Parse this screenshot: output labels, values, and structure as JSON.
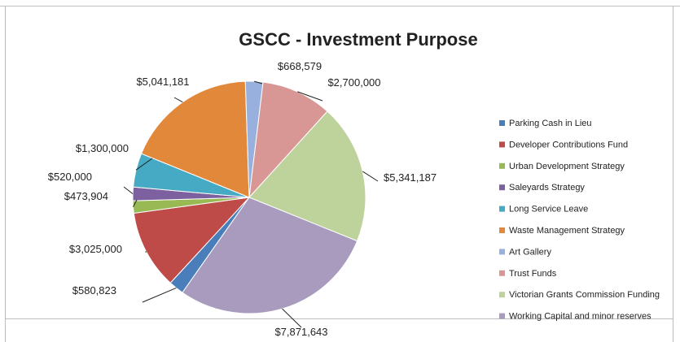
{
  "chart_data": {
    "type": "pie",
    "title": "GSCC - Investment Purpose",
    "legend_position": "right",
    "slices": [
      {
        "name": "Parking Cash in Lieu",
        "value": 580823,
        "label": "$580,823",
        "color": "#4a7ebb"
      },
      {
        "name": "Developer Contributions Fund",
        "value": 3025000,
        "label": "$3,025,000",
        "color": "#be4b48"
      },
      {
        "name": "Urban Development Strategy",
        "value": 473904,
        "label": "$473,904",
        "color": "#98b954"
      },
      {
        "name": "Saleyards Strategy",
        "value": 520000,
        "label": "$520,000",
        "color": "#7d60a0"
      },
      {
        "name": "Long Service Leave",
        "value": 1300000,
        "label": "$1,300,000",
        "color": "#46aac4"
      },
      {
        "name": "Waste Management Strategy",
        "value": 5041181,
        "label": "$5,041,181",
        "color": "#e2883a"
      },
      {
        "name": "Art Gallery",
        "value": 668579,
        "label": "$668,579",
        "color": "#98b0dd"
      },
      {
        "name": "Trust Funds",
        "value": 2700000,
        "label": "$2,700,000",
        "color": "#d89795"
      },
      {
        "name": "Victorian Grants Commission Funding",
        "value": 5341187,
        "label": "$5,341,187",
        "color": "#bdd39b"
      },
      {
        "name": "Working Capital and minor reserves",
        "value": 7871643,
        "label": "$7,871,643",
        "color": "#a99bbd"
      }
    ]
  }
}
